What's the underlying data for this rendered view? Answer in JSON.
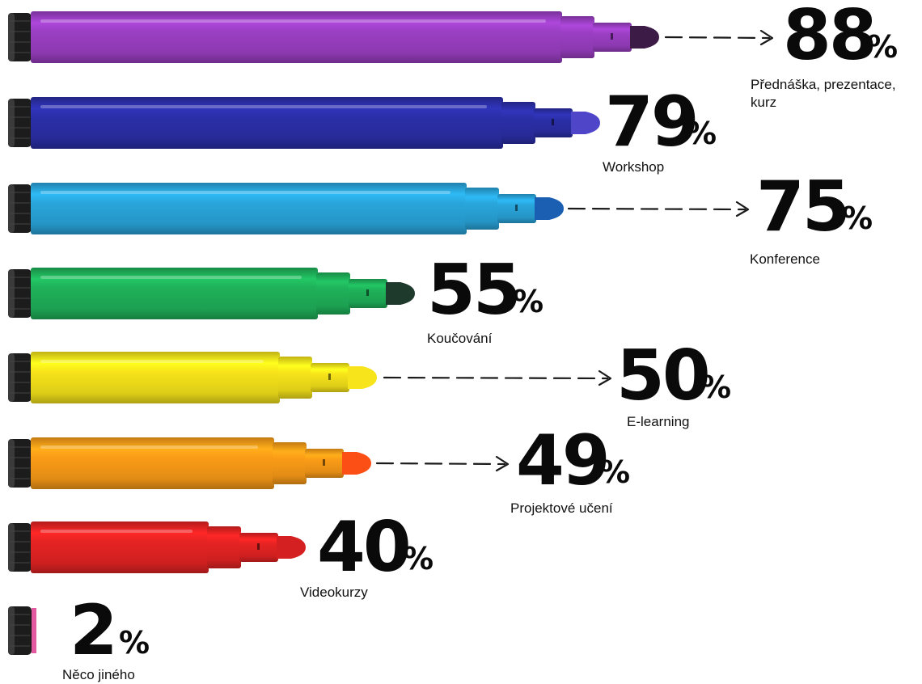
{
  "chart_data": {
    "type": "bar",
    "orientation": "horizontal",
    "unit": "%",
    "xlim": [
      0,
      100
    ],
    "categories": [
      "Přednáška, prezentace, kurz",
      "Workshop",
      "Konference",
      "Koučování",
      "E-learning",
      "Projektové učení",
      "Videokurzy",
      "Něco jiného"
    ],
    "values": [
      88,
      79,
      75,
      55,
      50,
      49,
      40,
      2
    ],
    "colors": [
      "#9b3fc4",
      "#2b2fa8",
      "#29a6dc",
      "#1fb25a",
      "#f7e41a",
      "#fb9c17",
      "#e62323",
      "#e35aa0"
    ],
    "tip_colors": [
      "#3c1c47",
      "#4f45c9",
      "#1b5fb3",
      "#1e3a2c",
      "#f7e41a",
      "#fb4f15",
      "#d42020",
      "#e35aa0"
    ],
    "arrow_labels": [
      "Přednáška, prezentace, kurz",
      "Konference",
      "E-learning",
      "Projektové učení"
    ]
  }
}
